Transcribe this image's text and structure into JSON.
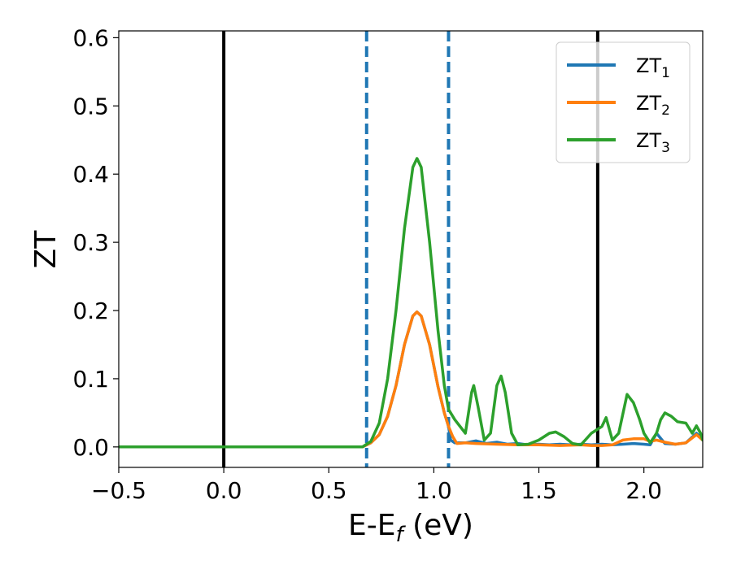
{
  "chart_data": {
    "type": "line",
    "xlabel": {
      "main": "E-E",
      "sub": "f",
      "suffix": " (eV)"
    },
    "ylabel": "ZT",
    "xlim": [
      -0.5,
      2.28
    ],
    "ylim": [
      -0.03,
      0.61
    ],
    "x_ticks": [
      -0.5,
      0.0,
      0.5,
      1.0,
      1.5,
      2.0
    ],
    "x_tick_labels": [
      "−0.5",
      "0.0",
      "0.5",
      "1.0",
      "1.5",
      "2.0"
    ],
    "y_ticks": [
      0.0,
      0.1,
      0.2,
      0.3,
      0.4,
      0.5,
      0.6
    ],
    "y_tick_labels": [
      "0.0",
      "0.1",
      "0.2",
      "0.3",
      "0.4",
      "0.5",
      "0.6"
    ],
    "grid": false,
    "legend": "top-right",
    "vertical_lines": [
      {
        "x": 0.0,
        "style": "solid",
        "color": "#000000"
      },
      {
        "x": 0.68,
        "style": "dashed",
        "color": "#1f77b4"
      },
      {
        "x": 1.07,
        "style": "dashed",
        "color": "#1f77b4"
      },
      {
        "x": 1.78,
        "style": "solid",
        "color": "#000000"
      }
    ],
    "series": [
      {
        "name": "ZT",
        "name_sub": "1",
        "color": "#1f77b4",
        "points": [
          [
            -0.5,
            0
          ],
          [
            0.6,
            0
          ],
          [
            0.66,
            0
          ],
          [
            0.7,
            0.006
          ],
          [
            0.74,
            0.018
          ],
          [
            0.78,
            0.045
          ],
          [
            0.82,
            0.09
          ],
          [
            0.86,
            0.15
          ],
          [
            0.9,
            0.192
          ],
          [
            0.92,
            0.198
          ],
          [
            0.94,
            0.192
          ],
          [
            0.98,
            0.15
          ],
          [
            1.02,
            0.088
          ],
          [
            1.05,
            0.05
          ],
          [
            1.07,
            0.03
          ],
          [
            1.08,
            0.01
          ],
          [
            1.1,
            0.006
          ],
          [
            1.15,
            0.006
          ],
          [
            1.2,
            0.009
          ],
          [
            1.25,
            0.005
          ],
          [
            1.3,
            0.007
          ],
          [
            1.35,
            0.004
          ],
          [
            1.4,
            0.005
          ],
          [
            1.45,
            0.003
          ],
          [
            1.5,
            0.004
          ],
          [
            1.55,
            0.003
          ],
          [
            1.6,
            0.004
          ],
          [
            1.65,
            0.003
          ],
          [
            1.7,
            0.004
          ],
          [
            1.75,
            0.003
          ],
          [
            1.8,
            0.004
          ],
          [
            1.85,
            0.003
          ],
          [
            1.9,
            0.004
          ],
          [
            1.95,
            0.005
          ],
          [
            2.0,
            0.004
          ],
          [
            2.03,
            0.003
          ],
          [
            2.06,
            0.02
          ],
          [
            2.1,
            0.005
          ],
          [
            2.15,
            0.004
          ],
          [
            2.2,
            0.006
          ],
          [
            2.25,
            0.02
          ],
          [
            2.28,
            0.012
          ]
        ]
      },
      {
        "name": "ZT",
        "name_sub": "2",
        "color": "#ff7f0e",
        "points": [
          [
            -0.5,
            0
          ],
          [
            0.6,
            0
          ],
          [
            0.66,
            0
          ],
          [
            0.7,
            0.006
          ],
          [
            0.74,
            0.018
          ],
          [
            0.78,
            0.045
          ],
          [
            0.82,
            0.09
          ],
          [
            0.86,
            0.15
          ],
          [
            0.9,
            0.192
          ],
          [
            0.92,
            0.198
          ],
          [
            0.94,
            0.192
          ],
          [
            0.98,
            0.15
          ],
          [
            1.02,
            0.088
          ],
          [
            1.05,
            0.05
          ],
          [
            1.07,
            0.03
          ],
          [
            1.09,
            0.015
          ],
          [
            1.11,
            0.005
          ],
          [
            1.15,
            0.006
          ],
          [
            1.2,
            0.005
          ],
          [
            1.3,
            0.004
          ],
          [
            1.4,
            0.003
          ],
          [
            1.5,
            0.003
          ],
          [
            1.6,
            0.002
          ],
          [
            1.7,
            0.003
          ],
          [
            1.75,
            0.002
          ],
          [
            1.8,
            0.002
          ],
          [
            1.85,
            0.003
          ],
          [
            1.9,
            0.01
          ],
          [
            1.95,
            0.012
          ],
          [
            2.0,
            0.012
          ],
          [
            2.03,
            0.008
          ],
          [
            2.06,
            0.01
          ],
          [
            2.1,
            0.007
          ],
          [
            2.15,
            0.004
          ],
          [
            2.2,
            0.006
          ],
          [
            2.25,
            0.018
          ],
          [
            2.28,
            0.01
          ]
        ]
      },
      {
        "name": "ZT",
        "name_sub": "3",
        "color": "#2ca02c",
        "points": [
          [
            -0.5,
            0
          ],
          [
            0.6,
            0
          ],
          [
            0.66,
            0
          ],
          [
            0.7,
            0.008
          ],
          [
            0.74,
            0.035
          ],
          [
            0.78,
            0.1
          ],
          [
            0.82,
            0.2
          ],
          [
            0.86,
            0.32
          ],
          [
            0.9,
            0.41
          ],
          [
            0.92,
            0.423
          ],
          [
            0.94,
            0.41
          ],
          [
            0.98,
            0.3
          ],
          [
            1.02,
            0.17
          ],
          [
            1.05,
            0.09
          ],
          [
            1.07,
            0.055
          ],
          [
            1.1,
            0.04
          ],
          [
            1.15,
            0.02
          ],
          [
            1.18,
            0.08
          ],
          [
            1.19,
            0.09
          ],
          [
            1.21,
            0.06
          ],
          [
            1.24,
            0.01
          ],
          [
            1.27,
            0.02
          ],
          [
            1.3,
            0.09
          ],
          [
            1.32,
            0.104
          ],
          [
            1.34,
            0.08
          ],
          [
            1.37,
            0.02
          ],
          [
            1.4,
            0.003
          ],
          [
            1.45,
            0.004
          ],
          [
            1.5,
            0.01
          ],
          [
            1.55,
            0.02
          ],
          [
            1.58,
            0.022
          ],
          [
            1.62,
            0.015
          ],
          [
            1.66,
            0.005
          ],
          [
            1.7,
            0.003
          ],
          [
            1.75,
            0.02
          ],
          [
            1.8,
            0.03
          ],
          [
            1.82,
            0.043
          ],
          [
            1.85,
            0.01
          ],
          [
            1.88,
            0.02
          ],
          [
            1.92,
            0.077
          ],
          [
            1.95,
            0.065
          ],
          [
            1.98,
            0.04
          ],
          [
            2.0,
            0.02
          ],
          [
            2.03,
            0.006
          ],
          [
            2.06,
            0.02
          ],
          [
            2.08,
            0.04
          ],
          [
            2.1,
            0.05
          ],
          [
            2.13,
            0.045
          ],
          [
            2.16,
            0.037
          ],
          [
            2.2,
            0.035
          ],
          [
            2.23,
            0.02
          ],
          [
            2.25,
            0.031
          ],
          [
            2.27,
            0.02
          ],
          [
            2.28,
            0.01
          ]
        ]
      }
    ]
  }
}
